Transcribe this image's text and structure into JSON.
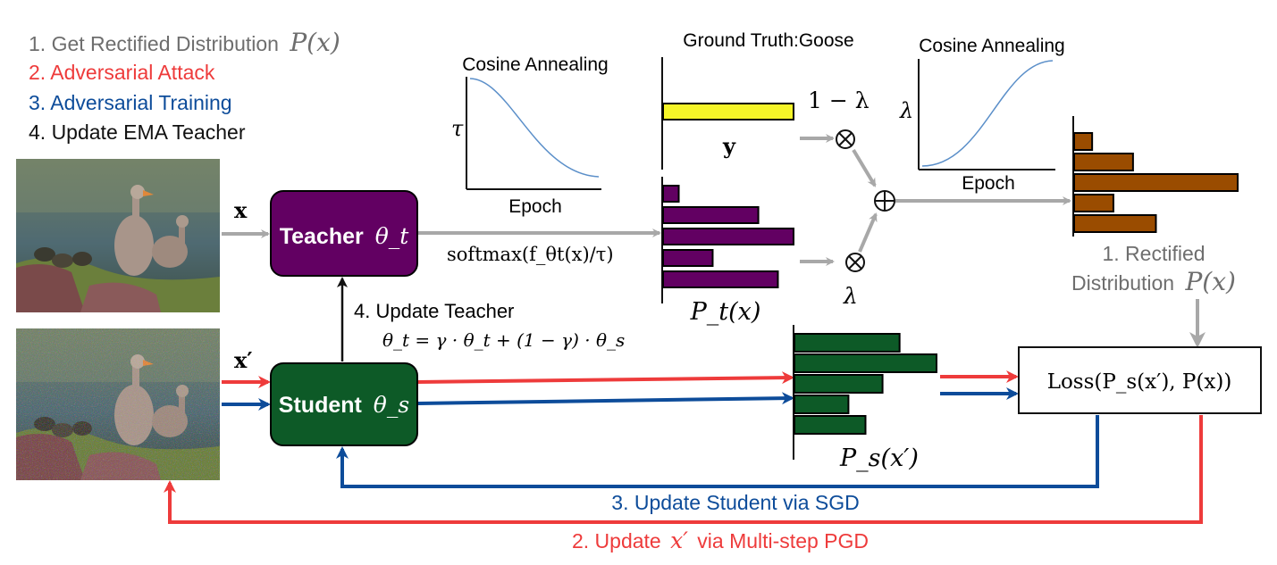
{
  "legend": {
    "step1": "1. Get Rectified Distribution",
    "step1_math": "P(x)",
    "step2": "2. Adversarial Attack",
    "step3": "3. Adversarial Training",
    "step4": "4. Update EMA Teacher"
  },
  "colors": {
    "gray": "#6e6e6e",
    "red": "#ee3b3b",
    "blue": "#0d4c9a",
    "black": "#111111",
    "teacher_fill": "#620062",
    "student_fill": "#0d5a27",
    "gt_bar": "#f5f528",
    "teacher_bar": "#620062",
    "student_bar": "#0d5a27",
    "rectified_bar": "#9a4c00",
    "curve": "#5b8fc9",
    "arrow_gray": "#a8a8a8"
  },
  "inputs": {
    "clean_label": "x",
    "adv_label": "x′"
  },
  "teacher": {
    "label": "Teacher",
    "param": "θ_t"
  },
  "student": {
    "label": "Student",
    "param": "θ_s"
  },
  "softmax_label": "softmax(f_θt(x)/τ)",
  "update_teacher": {
    "title": "4. Update Teacher",
    "formula": "θ_t = γ · θ_t + (1 − γ) · θ_s"
  },
  "cosine_left": {
    "title": "Cosine Annealing",
    "ylabel": "τ",
    "xlabel": "Epoch"
  },
  "cosine_right": {
    "title": "Cosine Annealing",
    "ylabel": "λ",
    "xlabel": "Epoch"
  },
  "ground_truth": {
    "title": "Ground Truth:Goose",
    "label": "y"
  },
  "one_minus_lambda": "1 − λ",
  "lambda_label": "λ",
  "teacher_dist_label": "P_t(x)",
  "student_dist_label": "P_s(x′)",
  "rectified": {
    "line1": "1. Rectified",
    "line2": "Distribution",
    "math": "P(x)"
  },
  "loss_label": "Loss(P_s(x′), P(x))",
  "step3_arrow_label": "3. Update Student via SGD",
  "step2_arrow_label_prefix": "2. Update",
  "step2_arrow_label_math": "x′",
  "step2_arrow_label_suffix": "via Multi-step PGD",
  "chart_data": [
    {
      "type": "bar",
      "name": "ground-truth",
      "values": [
        1
      ]
    },
    {
      "type": "bar",
      "name": "teacher-distribution",
      "values": [
        0.12,
        0.73,
        1.0,
        0.38,
        0.88
      ]
    },
    {
      "type": "bar",
      "name": "rectified-distribution",
      "values": [
        0.11,
        0.36,
        1.0,
        0.24,
        0.5
      ]
    },
    {
      "type": "bar",
      "name": "student-distribution",
      "values": [
        0.74,
        1.0,
        0.62,
        0.38,
        0.5
      ]
    }
  ]
}
